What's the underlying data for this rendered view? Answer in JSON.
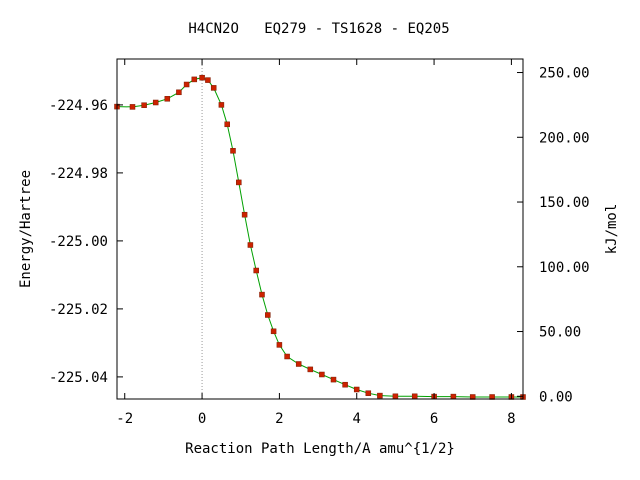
{
  "chart_data": {
    "type": "line",
    "title": "H4CN2O   EQ279 - TS1628 - EQ205",
    "xlabel": "Reaction Path Length/A amu^{1/2}",
    "ylabel": "Energy/Hartree",
    "y2label": "kJ/mol",
    "xlim": [
      -2.2,
      8.3
    ],
    "ylim": [
      -225.0465,
      -224.9465
    ],
    "x_ticks": [
      -2,
      0,
      2,
      4,
      6,
      8
    ],
    "x_tick_labels": [
      "-2",
      "0",
      "2",
      "4",
      "6",
      "8"
    ],
    "y_ticks": [
      -224.96,
      -224.98,
      -225.0,
      -225.02,
      -225.04
    ],
    "y_tick_labels": [
      "-224.96",
      "-224.98",
      "-225.00",
      "-225.02",
      "-225.04"
    ],
    "y2_ticks": [
      0,
      50,
      100,
      150,
      200,
      250
    ],
    "y2_tick_labels": [
      "0.00",
      "50.00",
      "100.00",
      "150.00",
      "200.00",
      "250.00"
    ],
    "y2_zero_hartree": -225.0457,
    "ts_x": 0,
    "line_color": "#00a000",
    "marker_color": "#cc2200",
    "series": [
      {
        "name": "",
        "x": [
          -2.2,
          -1.8,
          -1.5,
          -1.2,
          -0.9,
          -0.6,
          -0.4,
          -0.2,
          0,
          0.15,
          0.3,
          0.5,
          0.65,
          0.8,
          0.95,
          1.1,
          1.25,
          1.4,
          1.55,
          1.7,
          1.85,
          2.0,
          2.2,
          2.5,
          2.8,
          3.1,
          3.4,
          3.7,
          4.0,
          4.3,
          4.6,
          5.0,
          5.5,
          6.0,
          6.5,
          7.0,
          7.5,
          8.0,
          8.3
        ],
        "y": [
          -224.9605,
          -224.9606,
          -224.9601,
          -224.9593,
          -224.9582,
          -224.9563,
          -224.954,
          -224.9525,
          -224.952,
          -224.9527,
          -224.955,
          -224.96,
          -224.9657,
          -224.9735,
          -224.9828,
          -224.9923,
          -225.0012,
          -225.0087,
          -225.0158,
          -225.0218,
          -225.0266,
          -225.0306,
          -225.034,
          -225.0362,
          -225.0378,
          -225.0393,
          -225.0408,
          -225.0423,
          -225.0437,
          -225.0448,
          -225.0455,
          -225.0457,
          -225.0457,
          -225.0458,
          -225.0458,
          -225.0459,
          -225.0459,
          -225.0459,
          -225.0459
        ]
      }
    ]
  }
}
